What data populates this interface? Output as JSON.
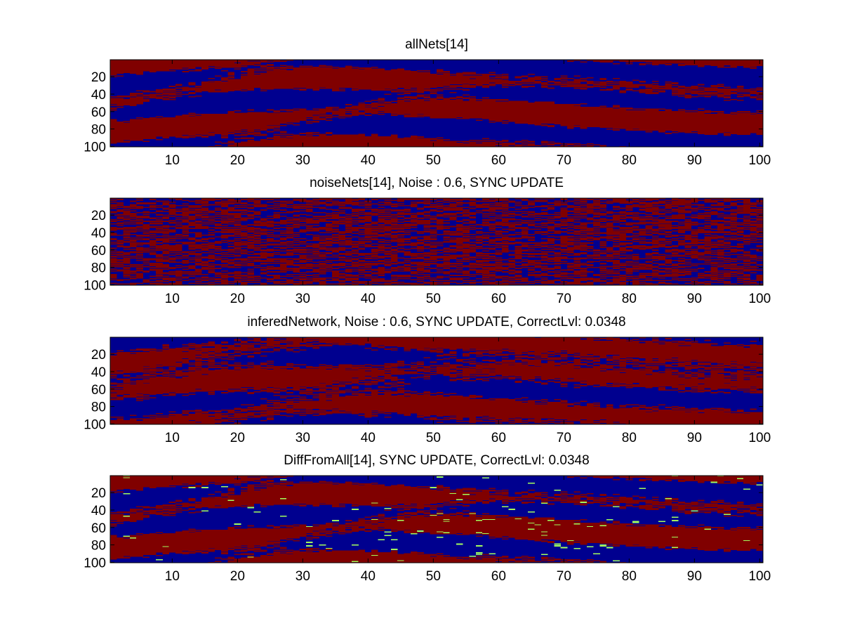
{
  "figure": {
    "background": "#ffffff",
    "colors": {
      "low": "#00008f",
      "high": "#800000",
      "diff": "#a3ff5c",
      "axis": "#000000"
    }
  },
  "chart_data": [
    {
      "type": "heatmap",
      "title": "allNets[14]",
      "x_ticks": [
        "10",
        "20",
        "30",
        "40",
        "50",
        "60",
        "70",
        "80",
        "90",
        "100"
      ],
      "y_ticks": [
        "20",
        "40",
        "60",
        "80",
        "100"
      ],
      "xlim": [
        0.5,
        100.5
      ],
      "ylim": [
        0.5,
        100.5
      ],
      "y_reversed": true,
      "grid": false,
      "pattern": "structured",
      "levels": [
        "low",
        "high"
      ]
    },
    {
      "type": "heatmap",
      "title": "noiseNets[14], Noise : 0.6, SYNC UPDATE",
      "x_ticks": [
        "10",
        "20",
        "30",
        "40",
        "50",
        "60",
        "70",
        "80",
        "90",
        "100"
      ],
      "y_ticks": [
        "20",
        "40",
        "60",
        "80",
        "100"
      ],
      "xlim": [
        0.5,
        100.5
      ],
      "ylim": [
        0.5,
        100.5
      ],
      "y_reversed": true,
      "grid": false,
      "pattern": "noise",
      "levels": [
        "low",
        "high"
      ]
    },
    {
      "type": "heatmap",
      "title": "inferedNetwork, Noise : 0.6, SYNC UPDATE, CorrectLvl: 0.0348",
      "x_ticks": [
        "10",
        "20",
        "30",
        "40",
        "50",
        "60",
        "70",
        "80",
        "90",
        "100"
      ],
      "y_ticks": [
        "20",
        "40",
        "60",
        "80",
        "100"
      ],
      "xlim": [
        0.5,
        100.5
      ],
      "ylim": [
        0.5,
        100.5
      ],
      "y_reversed": true,
      "grid": false,
      "pattern": "inverted",
      "levels": [
        "low",
        "high"
      ]
    },
    {
      "type": "heatmap",
      "title": "DiffFromAll[14], SYNC UPDATE, CorrectLvl: 0.0348",
      "x_ticks": [
        "10",
        "20",
        "30",
        "40",
        "50",
        "60",
        "70",
        "80",
        "90",
        "100"
      ],
      "y_ticks": [
        "20",
        "40",
        "60",
        "80",
        "100"
      ],
      "xlim": [
        0.5,
        100.5
      ],
      "ylim": [
        0.5,
        100.5
      ],
      "y_reversed": true,
      "grid": false,
      "pattern": "diff",
      "levels": [
        "low",
        "high",
        "diff"
      ]
    }
  ]
}
